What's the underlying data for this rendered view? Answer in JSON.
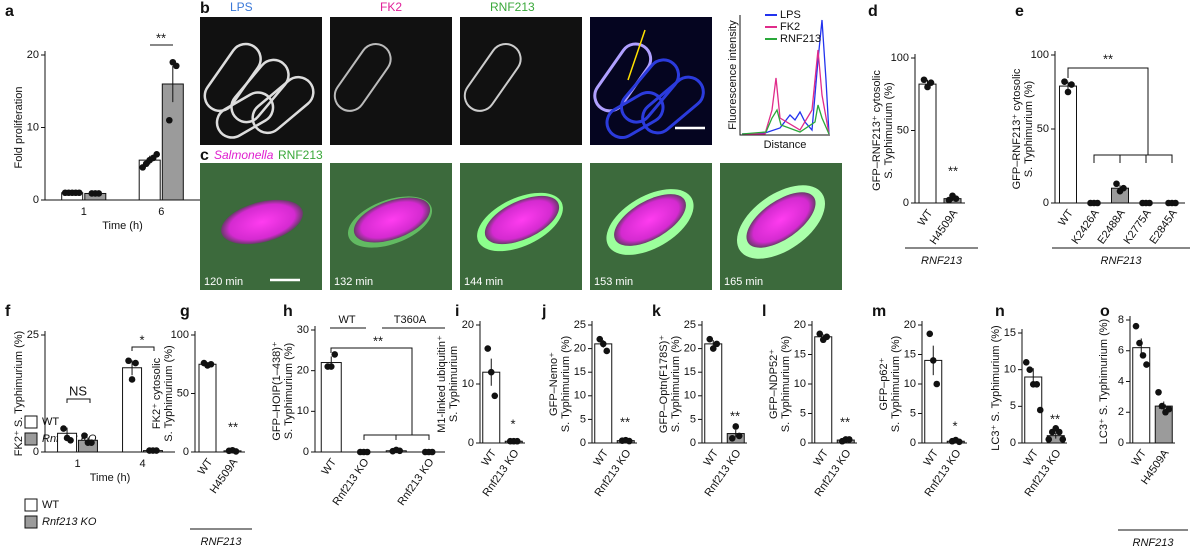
{
  "chart_data": [
    {
      "type": "bar",
      "panel": "a",
      "ylabel": [
        "Fold proliferation"
      ],
      "xlabel": "Time (h)",
      "categories": [
        "1",
        "6"
      ],
      "series": [
        {
          "name": "WT",
          "color": "#ffffff",
          "values": [
            1,
            5.5
          ],
          "errors": [
            0.05,
            0.6
          ],
          "points": [
            [
              1,
              1,
              1,
              1,
              1
            ],
            [
              4.5,
              5,
              5.5,
              5.8,
              6.3
            ]
          ]
        },
        {
          "name": "Rnf213 KO",
          "color": "#9b9b9b",
          "values": [
            0.9,
            16
          ],
          "errors": [
            0.05,
            2.5
          ],
          "points": [
            [
              0.9,
              0.9,
              0.9
            ],
            [
              11,
              19,
              18.5
            ]
          ]
        }
      ],
      "ylim": [
        0,
        20
      ],
      "yticks": [
        0,
        10,
        20
      ],
      "annotations": [
        "**"
      ]
    },
    {
      "type": "bar",
      "panel": "d",
      "ylabel": [
        "GFP–RNF213⁺ cytosolic",
        "S. Typhimurium (%)"
      ],
      "categories": [
        "WT",
        "H4509A"
      ],
      "series": [
        {
          "colors": [
            "#ffffff",
            "#9b9b9b"
          ],
          "values": [
            82,
            3
          ],
          "errors": [
            3,
            1.5
          ],
          "points": [
            [
              85,
              80,
              83
            ],
            [
              2,
              5,
              3
            ]
          ]
        }
      ],
      "ylim": [
        0,
        100
      ],
      "yticks": [
        0,
        50,
        100
      ],
      "annotations": [
        "**"
      ],
      "group_label": "RNF213"
    },
    {
      "type": "bar",
      "panel": "e",
      "ylabel": [
        "GFP–RNF213⁺ cytosolic",
        "S. Typhimurium (%)"
      ],
      "categories": [
        "WT",
        "K2426A",
        "E2488A",
        "K2775A",
        "E2845A"
      ],
      "series": [
        {
          "colors": [
            "#ffffff",
            "#9b9b9b",
            "#9b9b9b",
            "#9b9b9b",
            "#9b9b9b"
          ],
          "values": [
            79,
            0,
            10,
            0,
            0
          ],
          "errors": [
            3,
            0,
            2,
            0,
            0
          ],
          "points": [
            [
              82,
              75,
              80
            ],
            [
              0,
              0,
              0
            ],
            [
              13,
              8,
              10
            ],
            [
              0,
              0,
              0
            ],
            [
              0,
              0,
              0
            ]
          ]
        }
      ],
      "ylim": [
        0,
        100
      ],
      "yticks": [
        0,
        50,
        100
      ],
      "annotations": [
        "**"
      ],
      "group_label": "RNF213"
    },
    {
      "type": "bar",
      "panel": "f",
      "ylabel": [
        "FK2⁺ S. Typhimurium (%)"
      ],
      "xlabel": "Time (h)",
      "categories": [
        "1",
        "4"
      ],
      "series": [
        {
          "name": "WT",
          "color": "#ffffff",
          "values": [
            4,
            18
          ],
          "errors": [
            1.2,
            1.6
          ],
          "points": [
            [
              5,
              3,
              2.5
            ],
            [
              19.5,
              15.5,
              19
            ]
          ]
        },
        {
          "name": "Rnf213 KO",
          "color": "#9b9b9b",
          "values": [
            2.5,
            0.3
          ],
          "errors": [
            0.6,
            0.05
          ],
          "points": [
            [
              3.5,
              2,
              2
            ],
            [
              0.3,
              0.3,
              0.3
            ]
          ]
        }
      ],
      "ylim": [
        0,
        25
      ],
      "yticks": [
        0,
        25
      ],
      "annotations": [
        "NS",
        "*"
      ]
    },
    {
      "type": "bar",
      "panel": "g",
      "ylabel": [
        "FK2⁺ cytosolic",
        "S. Typhimurium (%)"
      ],
      "categories": [
        "WT",
        "H4509A"
      ],
      "series": [
        {
          "colors": [
            "#ffffff",
            "#9b9b9b"
          ],
          "values": [
            75,
            1
          ],
          "errors": [
            1,
            0.3
          ],
          "points": [
            [
              76,
              74,
              75
            ],
            [
              1,
              1.5,
              0.5
            ]
          ]
        }
      ],
      "ylim": [
        0,
        100
      ],
      "yticks": [
        0,
        50,
        100
      ],
      "annotations": [
        "**"
      ],
      "group_label": "RNF213"
    },
    {
      "type": "bar",
      "panel": "h",
      "ylabel": [
        "GFP–HOIP(1–438)⁺",
        "S. Typhimurium (%)"
      ],
      "categories": [
        "WT",
        "Rnf213 KO",
        null,
        "Rnf213 KO"
      ],
      "series": [
        {
          "colors": [
            "#ffffff",
            "#9b9b9b",
            "#ffffff",
            "#9b9b9b"
          ],
          "values": [
            22,
            0,
            0.3,
            0
          ],
          "errors": [
            1.5,
            0,
            0.1,
            0
          ],
          "points": [
            [
              21,
              21,
              24
            ],
            [
              0,
              0,
              0
            ],
            [
              0.2,
              0.5,
              0.3
            ],
            [
              0,
              0,
              0
            ]
          ]
        }
      ],
      "ylim": [
        0,
        30
      ],
      "yticks": [
        0,
        10,
        20,
        30
      ],
      "annotations": [
        "**"
      ],
      "header_labels": [
        "WT",
        "T360A"
      ]
    },
    {
      "type": "bar",
      "panel": "i",
      "ylabel": [
        "M1-linked ubiquitin⁺",
        "S. Typhimurium"
      ],
      "categories": [
        "WT",
        "Rnf213 KO"
      ],
      "series": [
        {
          "colors": [
            "#ffffff",
            "#9b9b9b"
          ],
          "values": [
            12,
            0.3
          ],
          "errors": [
            2.3,
            0.05
          ],
          "points": [
            [
              16,
              12,
              8
            ],
            [
              0.3,
              0.3,
              0.3
            ]
          ]
        }
      ],
      "ylim": [
        0,
        20
      ],
      "yticks": [
        0,
        10,
        20
      ],
      "annotations": [
        "*"
      ]
    },
    {
      "type": "bar",
      "panel": "j",
      "ylabel": [
        "GFP–Nemo⁺",
        "S. Typhimurium (%)"
      ],
      "categories": [
        "WT",
        "Rnf213 KO"
      ],
      "series": [
        {
          "colors": [
            "#ffffff",
            "#9b9b9b"
          ],
          "values": [
            21,
            0.5
          ],
          "errors": [
            0.8,
            0.05
          ],
          "points": [
            [
              22,
              21,
              19.5
            ],
            [
              0.5,
              0.6,
              0.4
            ]
          ]
        }
      ],
      "ylim": [
        0,
        25
      ],
      "yticks": [
        0,
        5,
        10,
        15,
        20,
        25
      ],
      "annotations": [
        "**"
      ]
    },
    {
      "type": "bar",
      "panel": "k",
      "ylabel": [
        "GFP–Optn(F178S)⁺",
        "S. Typhimurium (%)"
      ],
      "categories": [
        "WT",
        "Rnf213 KO"
      ],
      "series": [
        {
          "colors": [
            "#ffffff",
            "#9b9b9b"
          ],
          "values": [
            21,
            2
          ],
          "errors": [
            0.8,
            0.8
          ],
          "points": [
            [
              22,
              20,
              21
            ],
            [
              1,
              3.5,
              1.5
            ]
          ]
        }
      ],
      "ylim": [
        0,
        25
      ],
      "yticks": [
        0,
        5,
        10,
        15,
        20,
        25
      ],
      "annotations": [
        "**"
      ]
    },
    {
      "type": "bar",
      "panel": "l",
      "ylabel": [
        "GFP–NDP52⁺",
        "S. Typhimurium (%)"
      ],
      "categories": [
        "WT",
        "Rnf213 KO"
      ],
      "series": [
        {
          "colors": [
            "#ffffff",
            "#9b9b9b"
          ],
          "values": [
            18,
            0.5
          ],
          "errors": [
            0.4,
            0.1
          ],
          "points": [
            [
              18.5,
              17.5,
              18
            ],
            [
              0.3,
              0.6,
              0.6
            ]
          ]
        }
      ],
      "ylim": [
        0,
        20
      ],
      "yticks": [
        0,
        5,
        10,
        15,
        20
      ],
      "annotations": [
        "**"
      ]
    },
    {
      "type": "bar",
      "panel": "m",
      "ylabel": [
        "GFP–p62⁺",
        "S. Typhimurium (%)"
      ],
      "categories": [
        "WT",
        "Rnf213 KO"
      ],
      "series": [
        {
          "colors": [
            "#ffffff",
            "#9b9b9b"
          ],
          "values": [
            14,
            0.3
          ],
          "errors": [
            2.5,
            0.05
          ],
          "points": [
            [
              18.5,
              14,
              10
            ],
            [
              0.3,
              0.5,
              0.2
            ]
          ]
        }
      ],
      "ylim": [
        0,
        20
      ],
      "yticks": [
        0,
        5,
        10,
        15,
        20
      ],
      "annotations": [
        "*"
      ]
    },
    {
      "type": "bar",
      "panel": "n",
      "ylabel": [
        "LC3⁺ S. Typhimurium (%)"
      ],
      "categories": [
        "WT",
        "Rnf213 KO"
      ],
      "series": [
        {
          "colors": [
            "#ffffff",
            "#9b9b9b"
          ],
          "values": [
            9,
            1
          ],
          "errors": [
            1.2,
            0.4
          ],
          "points": [
            [
              11,
              10,
              8,
              8,
              4.5
            ],
            [
              0.5,
              1.5,
              2,
              1.5,
              0.5
            ]
          ]
        }
      ],
      "ylim": [
        0,
        15
      ],
      "yticks": [
        0,
        5,
        10,
        15
      ],
      "annotations": [
        "**"
      ]
    },
    {
      "type": "bar",
      "panel": "o",
      "ylabel": [
        "LC3⁺ S. Typhimurium (%)"
      ],
      "categories": [
        "WT",
        "H4509A"
      ],
      "series": [
        {
          "colors": [
            "#ffffff",
            "#9b9b9b"
          ],
          "values": [
            6.2,
            2.4
          ],
          "errors": [
            0.6,
            0.3
          ],
          "points": [
            [
              7.6,
              6.5,
              5.7,
              5.1
            ],
            [
              3.3,
              2.4,
              2,
              2.2
            ]
          ]
        }
      ],
      "ylim": [
        0,
        8
      ],
      "yticks": [
        0,
        2,
        4,
        6,
        8
      ],
      "annotations": [
        "**"
      ],
      "group_label": "RNF213"
    }
  ],
  "image_panels": {
    "b": {
      "letter": "b",
      "channels": [
        "LPS",
        "FK2",
        "RNF213"
      ],
      "profile": {
        "legend": [
          "LPS",
          "FK2",
          "RNF213"
        ],
        "ylabel": "Fluorescence intensity",
        "xlabel": "Distance"
      }
    },
    "c": {
      "letter": "c",
      "labels": [
        "Salmonella",
        "RNF213"
      ],
      "times": [
        "120 min",
        "132 min",
        "144 min",
        "153 min",
        "165 min"
      ]
    }
  }
}
